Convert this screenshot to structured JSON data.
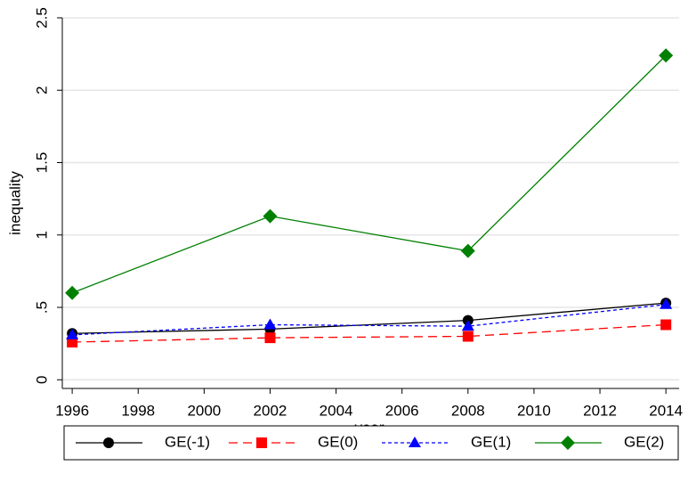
{
  "chart_data": {
    "type": "line",
    "x_label": "year",
    "y_label": "inequality",
    "x": [
      1996,
      2002,
      2008,
      2014
    ],
    "series": [
      {
        "name": "GE(-1)",
        "color": "#000000",
        "marker": "circle",
        "dash": "solid",
        "values": [
          0.32,
          0.35,
          0.41,
          0.53
        ]
      },
      {
        "name": "GE(0)",
        "color": "#ff0000",
        "marker": "square",
        "dash": "long",
        "values": [
          0.26,
          0.29,
          0.3,
          0.38
        ]
      },
      {
        "name": "GE(1)",
        "color": "#0000ff",
        "marker": "triangle",
        "dash": "short",
        "values": [
          0.31,
          0.38,
          0.37,
          0.52
        ]
      },
      {
        "name": "GE(2)",
        "color": "#008000",
        "marker": "diamond",
        "dash": "solid",
        "values": [
          0.6,
          1.13,
          0.89,
          2.24
        ]
      }
    ],
    "xlim": [
      1995.7,
      2014.4
    ],
    "xticks": [
      1996,
      1998,
      2000,
      2002,
      2004,
      2006,
      2008,
      2010,
      2012,
      2014
    ],
    "ylim": [
      -0.06,
      2.5
    ],
    "yticks": [
      0,
      {
        "value": 0.5,
        "label": ".5"
      },
      1,
      1.5,
      2,
      2.5
    ],
    "grid": true,
    "legend": "bottom"
  }
}
